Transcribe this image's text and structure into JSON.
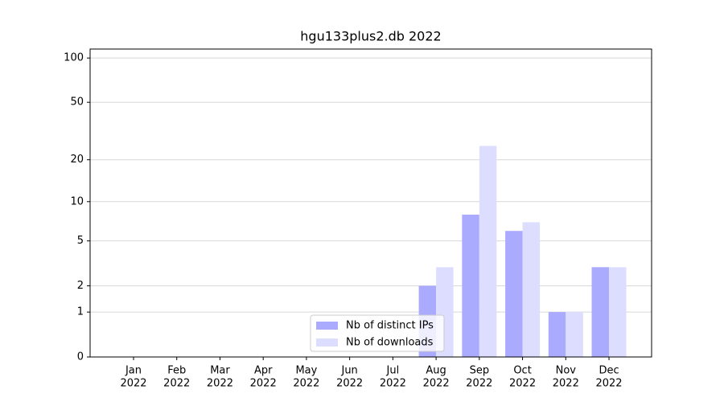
{
  "chart_data": {
    "type": "bar",
    "title": "hgu133plus2.db 2022",
    "categories": [
      [
        "Jan",
        "2022"
      ],
      [
        "Feb",
        "2022"
      ],
      [
        "Mar",
        "2022"
      ],
      [
        "Apr",
        "2022"
      ],
      [
        "May",
        "2022"
      ],
      [
        "Jun",
        "2022"
      ],
      [
        "Jul",
        "2022"
      ],
      [
        "Aug",
        "2022"
      ],
      [
        "Sep",
        "2022"
      ],
      [
        "Oct",
        "2022"
      ],
      [
        "Nov",
        "2022"
      ],
      [
        "Dec",
        "2022"
      ]
    ],
    "series": [
      {
        "name": "Nb of distinct IPs",
        "color": "#aaaaff",
        "values": [
          0,
          0,
          0,
          0,
          0,
          0,
          0,
          2,
          8,
          6,
          1,
          3
        ]
      },
      {
        "name": "Nb of downloads",
        "color": "#ddddff",
        "values": [
          0,
          0,
          0,
          0,
          0,
          0,
          0,
          3,
          25,
          7,
          1,
          3
        ]
      }
    ],
    "yscale": "log1p",
    "ylim": [
      0,
      115
    ],
    "yticks": [
      0,
      1,
      2,
      5,
      10,
      20,
      50,
      100
    ],
    "grid": true,
    "legend": "lower center"
  }
}
